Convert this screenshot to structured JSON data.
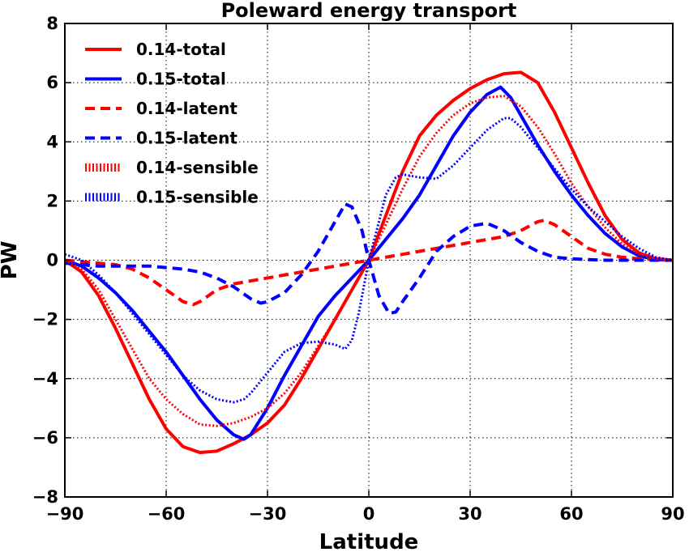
{
  "chart_data": {
    "type": "line",
    "title": "Poleward energy transport",
    "xlabel": "Latitude",
    "ylabel": "PW",
    "xlim": [
      -90,
      90
    ],
    "ylim": [
      -8,
      8
    ],
    "xticks": [
      -90,
      -60,
      -30,
      0,
      30,
      60,
      90
    ],
    "yticks": [
      -8,
      -6,
      -4,
      -2,
      0,
      2,
      4,
      6,
      8
    ],
    "xtick_labels": [
      "−90",
      "−60",
      "−30",
      "0",
      "30",
      "60",
      "90"
    ],
    "ytick_labels": [
      "−8",
      "−6",
      "−4",
      "−2",
      "0",
      "2",
      "4",
      "6",
      "8"
    ],
    "grid": true,
    "legend_position": "upper-left",
    "series": [
      {
        "name": "0.14-total",
        "color": "#ff0000",
        "style": "solid",
        "x": [
          -90,
          -85,
          -80,
          -75,
          -70,
          -65,
          -60,
          -55,
          -50,
          -45,
          -40,
          -35,
          -30,
          -25,
          -20,
          -15,
          -10,
          -5,
          0,
          5,
          10,
          15,
          20,
          25,
          30,
          35,
          40,
          45,
          50,
          55,
          60,
          65,
          70,
          75,
          80,
          85,
          90
        ],
        "y": [
          0,
          -0.4,
          -1.2,
          -2.3,
          -3.5,
          -4.7,
          -5.7,
          -6.3,
          -6.5,
          -6.45,
          -6.2,
          -5.9,
          -5.5,
          -4.9,
          -4.0,
          -3.0,
          -2.0,
          -1.0,
          0,
          1.5,
          3.0,
          4.2,
          4.9,
          5.4,
          5.8,
          6.1,
          6.3,
          6.35,
          6.0,
          5.0,
          3.8,
          2.6,
          1.5,
          0.7,
          0.25,
          0.05,
          0
        ]
      },
      {
        "name": "0.15-total",
        "color": "#0000ff",
        "style": "solid",
        "x": [
          -90,
          -85,
          -80,
          -75,
          -70,
          -65,
          -60,
          -55,
          -50,
          -45,
          -40,
          -37,
          -35,
          -30,
          -25,
          -20,
          -15,
          -10,
          -5,
          0,
          5,
          10,
          15,
          20,
          25,
          30,
          35,
          39,
          42,
          45,
          50,
          55,
          60,
          65,
          70,
          75,
          80,
          85,
          90
        ],
        "y": [
          0,
          -0.2,
          -0.6,
          -1.1,
          -1.7,
          -2.4,
          -3.1,
          -3.9,
          -4.7,
          -5.4,
          -5.9,
          -6.05,
          -5.9,
          -5.0,
          -3.9,
          -2.9,
          -1.9,
          -1.2,
          -0.6,
          0,
          0.7,
          1.4,
          2.2,
          3.2,
          4.2,
          5.0,
          5.6,
          5.85,
          5.5,
          4.9,
          3.9,
          3.0,
          2.2,
          1.5,
          0.9,
          0.45,
          0.15,
          0.02,
          0
        ]
      },
      {
        "name": "0.14-latent",
        "color": "#ff0000",
        "style": "dashed",
        "x": [
          -90,
          -85,
          -80,
          -75,
          -70,
          -65,
          -60,
          -55,
          -52,
          -50,
          -45,
          -40,
          -35,
          -30,
          -25,
          -20,
          -15,
          -10,
          -5,
          0,
          5,
          10,
          15,
          20,
          25,
          30,
          35,
          40,
          45,
          50,
          52,
          55,
          60,
          65,
          70,
          75,
          80,
          85,
          90
        ],
        "y": [
          0,
          -0.05,
          -0.1,
          -0.15,
          -0.3,
          -0.6,
          -1.0,
          -1.4,
          -1.5,
          -1.4,
          -1.0,
          -0.8,
          -0.7,
          -0.6,
          -0.5,
          -0.4,
          -0.3,
          -0.2,
          -0.1,
          0,
          0.1,
          0.2,
          0.3,
          0.4,
          0.5,
          0.6,
          0.7,
          0.8,
          1.0,
          1.3,
          1.35,
          1.2,
          0.8,
          0.4,
          0.2,
          0.1,
          0.05,
          0.02,
          0
        ]
      },
      {
        "name": "0.15-latent",
        "color": "#0000ff",
        "style": "dashed",
        "x": [
          -90,
          -85,
          -80,
          -75,
          -70,
          -65,
          -60,
          -55,
          -50,
          -45,
          -40,
          -35,
          -32,
          -30,
          -25,
          -20,
          -15,
          -10,
          -7,
          -5,
          -2,
          0,
          3,
          6,
          8,
          10,
          15,
          20,
          25,
          30,
          35,
          40,
          45,
          50,
          55,
          60,
          65,
          70,
          75,
          80,
          85,
          90
        ],
        "y": [
          -0.1,
          -0.15,
          -0.2,
          -0.2,
          -0.2,
          -0.2,
          -0.25,
          -0.3,
          -0.4,
          -0.6,
          -0.9,
          -1.3,
          -1.45,
          -1.4,
          -1.1,
          -0.5,
          0.3,
          1.3,
          1.9,
          1.8,
          1.0,
          0,
          -1.2,
          -1.8,
          -1.75,
          -1.4,
          -0.6,
          0.3,
          0.8,
          1.15,
          1.25,
          1.0,
          0.6,
          0.3,
          0.1,
          0.05,
          0.02,
          0,
          0,
          0,
          0,
          0
        ]
      },
      {
        "name": "0.14-sensible",
        "color": "#ff0000",
        "style": "dotted",
        "x": [
          -90,
          -85,
          -80,
          -75,
          -70,
          -65,
          -60,
          -55,
          -50,
          -45,
          -40,
          -35,
          -30,
          -25,
          -20,
          -15,
          -10,
          -5,
          0,
          5,
          10,
          15,
          20,
          25,
          30,
          35,
          40,
          45,
          50,
          55,
          60,
          65,
          70,
          75,
          80,
          85,
          90
        ],
        "y": [
          0,
          -0.3,
          -1.0,
          -2.0,
          -3.0,
          -4.0,
          -4.7,
          -5.2,
          -5.55,
          -5.6,
          -5.5,
          -5.3,
          -5.0,
          -4.5,
          -3.8,
          -2.9,
          -2.0,
          -1.0,
          0,
          1.2,
          2.4,
          3.5,
          4.3,
          4.9,
          5.3,
          5.5,
          5.55,
          5.2,
          4.5,
          3.6,
          2.6,
          1.8,
          1.1,
          0.55,
          0.2,
          0.05,
          0
        ]
      },
      {
        "name": "0.15-sensible",
        "color": "#0000ff",
        "style": "dotted",
        "x": [
          -90,
          -85,
          -80,
          -75,
          -70,
          -65,
          -60,
          -55,
          -50,
          -45,
          -40,
          -37,
          -35,
          -30,
          -25,
          -20,
          -15,
          -10,
          -7,
          -5,
          -3,
          0,
          3,
          5,
          8,
          10,
          15,
          20,
          25,
          30,
          35,
          40,
          42,
          45,
          50,
          55,
          60,
          65,
          70,
          75,
          80,
          85,
          90
        ],
        "y": [
          0.2,
          0,
          -0.5,
          -1.1,
          -1.8,
          -2.5,
          -3.2,
          -3.9,
          -4.4,
          -4.7,
          -4.8,
          -4.7,
          -4.5,
          -3.8,
          -3.1,
          -2.8,
          -2.75,
          -2.85,
          -3.0,
          -2.7,
          -1.8,
          0,
          1.3,
          2.2,
          2.8,
          2.9,
          2.8,
          2.75,
          3.2,
          3.8,
          4.4,
          4.8,
          4.8,
          4.5,
          3.8,
          3.1,
          2.4,
          1.8,
          1.3,
          0.8,
          0.4,
          0.1,
          0
        ]
      }
    ]
  }
}
